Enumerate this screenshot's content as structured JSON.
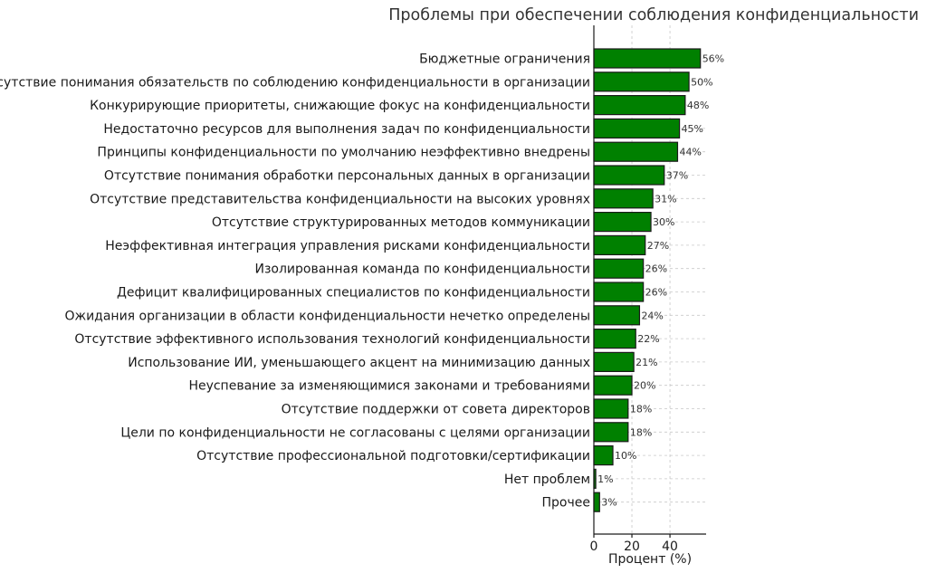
{
  "chart_data": {
    "type": "bar",
    "orientation": "horizontal",
    "title": "Проблемы при обеспечении соблюдения конфиденциальности",
    "xlabel": "Процент (%)",
    "ylabel": "",
    "xlim": [
      0,
      59
    ],
    "xticks": [
      0,
      20,
      40
    ],
    "grid": true,
    "bar_color": "#008000",
    "categories": [
      "Бюджетные ограничения",
      "Отсутствие понимания обязательств по соблюдению конфиденциальности в организации",
      "Конкурирующие приоритеты, снижающие фокус на конфиденциальности",
      "Недостаточно ресурсов для выполнения задач по конфиденциальности",
      "Принципы конфиденциальности по умолчанию неэффективно внедрены",
      "Отсутствие понимания обработки персональных данных в организации",
      "Отсутствие представительства конфиденциальности на высоких уровнях",
      "Отсутствие структурированных методов коммуникации",
      "Неэффективная интеграция управления рисками конфиденциальности",
      "Изолированная команда по конфиденциальности",
      "Дефицит квалифицированных специалистов по конфиденциальности",
      "Ожидания организации в области конфиденциальности нечетко определены",
      "Отсутствие эффективного использования технологий конфиденциальности",
      "Использование ИИ, уменьшающего акцент на минимизацию данных",
      "Неуспевание за изменяющимися законами и требованиями",
      "Отсутствие поддержки от совета директоров",
      "Цели по конфиденциальности не согласованы с целями организации",
      "Отсутствие профессиональной подготовки/сертификации",
      "Нет проблем",
      "Прочее"
    ],
    "values": [
      56,
      50,
      48,
      45,
      44,
      37,
      31,
      30,
      27,
      26,
      26,
      24,
      22,
      21,
      20,
      18,
      18,
      10,
      1,
      3
    ],
    "value_labels": [
      "56%",
      "50%",
      "48%",
      "45%",
      "44%",
      "37%",
      "31%",
      "30%",
      "27%",
      "26%",
      "26%",
      "24%",
      "22%",
      "21%",
      "20%",
      "18%",
      "18%",
      "10%",
      "1%",
      "3%"
    ]
  }
}
